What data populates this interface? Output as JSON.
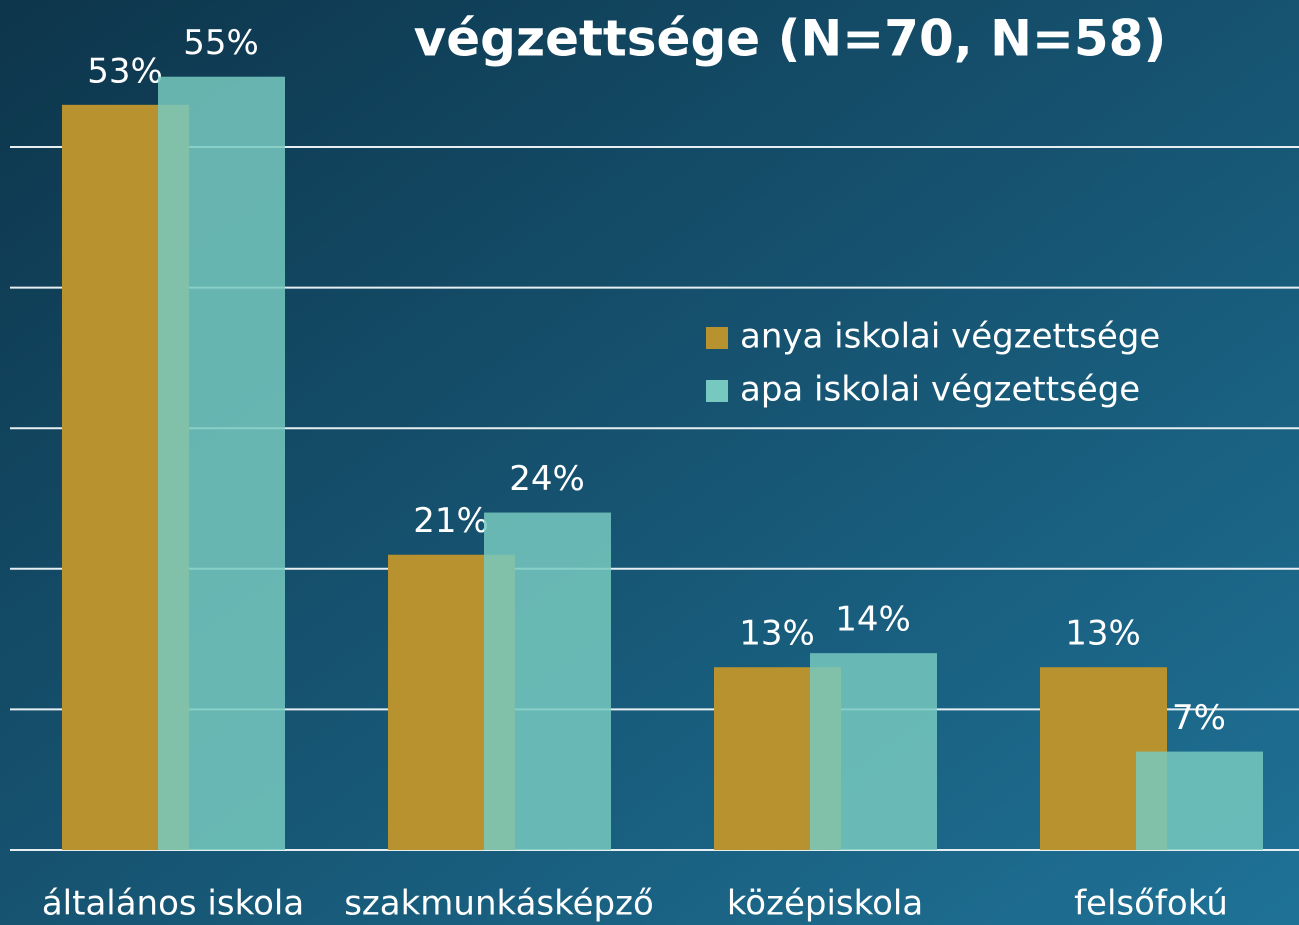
{
  "chart_data": {
    "type": "bar",
    "title": "végzettsége (N=70, N=58)",
    "categories": [
      "általános iskola",
      "szakmunkásképző",
      "középiskola",
      "felsőfokú"
    ],
    "series": [
      {
        "name": "anya iskolai végzettsége",
        "color": "#b8922f",
        "values": [
          53,
          21,
          13,
          13
        ],
        "value_labels": [
          "53%",
          "21%",
          "13%",
          "13%"
        ]
      },
      {
        "name": "apa iskolai végzettsége",
        "color": "#77c9c0",
        "values": [
          55,
          24,
          14,
          7
        ],
        "value_labels": [
          "55%",
          "24%",
          "14%",
          "7%"
        ]
      }
    ],
    "ylim": [
      0,
      60
    ],
    "yticks": [
      0,
      10,
      20,
      30,
      40,
      50
    ],
    "grid": true,
    "legend": "right"
  }
}
